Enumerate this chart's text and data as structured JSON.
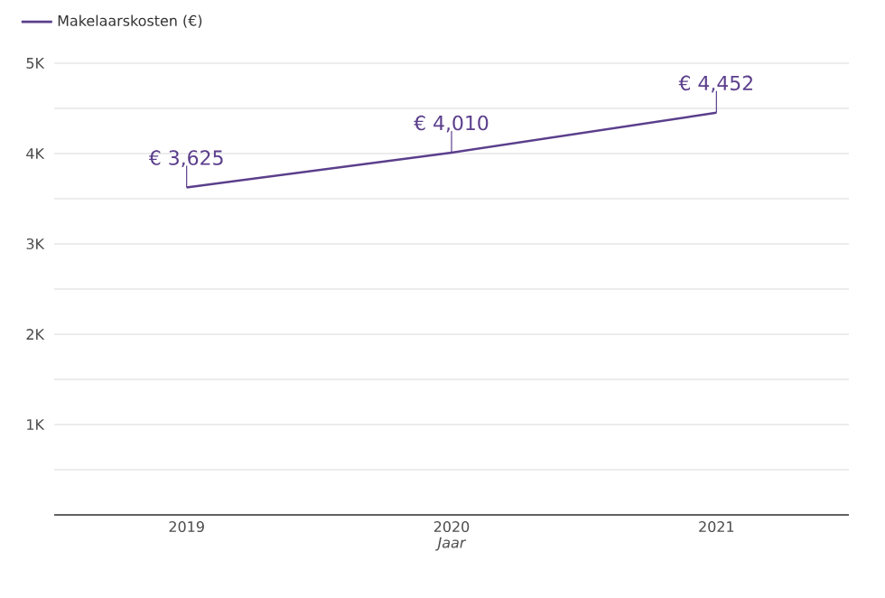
{
  "chart_data": {
    "type": "line",
    "xlabel": "Jaar",
    "categories": [
      "2019",
      "2020",
      "2021"
    ],
    "series": [
      {
        "name": "Makelaarskosten (€)",
        "color": "#5b3f8c",
        "values": [
          3625,
          4010,
          4452
        ],
        "value_labels": [
          "€ 3,625",
          "€ 4,010",
          "€ 4,452"
        ]
      }
    ],
    "ylim": [
      0,
      5000
    ],
    "yticks": [
      {
        "value": 0,
        "label": null
      },
      {
        "value": 500,
        "label": null
      },
      {
        "value": 1000,
        "label": "1K"
      },
      {
        "value": 1500,
        "label": null
      },
      {
        "value": 2000,
        "label": "2K"
      },
      {
        "value": 2500,
        "label": null
      },
      {
        "value": 3000,
        "label": "3K"
      },
      {
        "value": 3500,
        "label": null
      },
      {
        "value": 4000,
        "label": "4K"
      },
      {
        "value": 4500,
        "label": null
      },
      {
        "value": 5000,
        "label": "5K"
      }
    ],
    "grid": "y",
    "legend": "top left",
    "marker": "none",
    "line_style": "solid"
  }
}
